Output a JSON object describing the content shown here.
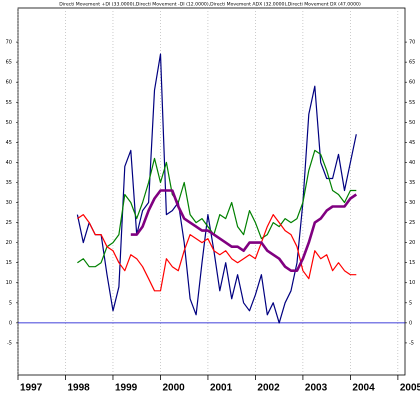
{
  "chart_data": {
    "type": "line",
    "title": "Directi Movement +DI (33.0000),Directi Movement -DI (12.0000),Directi Movement ADX (32.0000),Directi Movement DX (47.0000)",
    "x": [
      1998.25,
      1998.375,
      1998.5,
      1998.625,
      1998.75,
      1998.875,
      1999,
      1999.125,
      1999.25,
      1999.375,
      1999.5,
      1999.625,
      1999.75,
      1999.875,
      2000,
      2000.125,
      2000.25,
      2000.375,
      2000.5,
      2000.625,
      2000.75,
      2000.875,
      2001,
      2001.125,
      2001.25,
      2001.375,
      2001.5,
      2001.625,
      2001.75,
      2001.875,
      2002,
      2002.125,
      2002.25,
      2002.375,
      2002.5,
      2002.625,
      2002.75,
      2002.875,
      2003,
      2003.125,
      2003.25,
      2003.375,
      2003.5,
      2003.625,
      2003.75,
      2003.875,
      2004,
      2004.125
    ],
    "series": [
      {
        "name": "Directi Movement DX",
        "color": "#000080",
        "width": 1.2,
        "values": [
          27,
          20,
          25,
          22,
          22,
          12,
          3,
          9,
          39,
          43,
          22,
          28,
          30,
          58,
          67,
          27,
          28,
          30,
          20,
          6,
          2,
          15,
          27,
          18,
          8,
          15,
          6,
          12,
          5,
          3,
          7,
          12,
          2,
          5,
          0,
          5,
          8,
          15,
          30,
          52,
          59,
          40,
          36,
          36,
          42,
          33,
          40,
          47
        ]
      },
      {
        "name": "Directi Movement +DI",
        "color": "#008000",
        "width": 1.2,
        "values": [
          15,
          16,
          14,
          14,
          15,
          19,
          20,
          22,
          32,
          30,
          26,
          30,
          35,
          41,
          35,
          40,
          32,
          30,
          35,
          27,
          25,
          26,
          24,
          22,
          27,
          26,
          30,
          24,
          22,
          28,
          25,
          21,
          22,
          25,
          24,
          26,
          25,
          26,
          30,
          38,
          43,
          42,
          38,
          33,
          32,
          30,
          33,
          33
        ]
      },
      {
        "name": "Directi Movement -DI",
        "color": "#ff0000",
        "width": 1.2,
        "values": [
          26,
          27,
          25,
          22,
          22,
          19,
          18,
          15,
          13,
          17,
          16,
          14,
          11,
          8,
          8,
          16,
          14,
          13,
          18,
          22,
          21,
          20,
          21,
          18,
          17,
          18,
          16,
          15,
          16,
          17,
          16,
          20,
          24,
          27,
          25,
          23,
          22,
          19,
          13,
          11,
          18,
          16,
          17,
          13,
          15,
          13,
          12,
          12
        ]
      },
      {
        "name": "Directi Movement ADX",
        "color": "#800080",
        "width": 2.6,
        "values": [
          null,
          null,
          null,
          null,
          null,
          null,
          null,
          null,
          null,
          22,
          22,
          24,
          28,
          31,
          33,
          33,
          33,
          29,
          26,
          25,
          24,
          23,
          23,
          22,
          21,
          20,
          19,
          19,
          18,
          20,
          20,
          20,
          18,
          17,
          16,
          14,
          13,
          13,
          16,
          20,
          25,
          26,
          28,
          29,
          29,
          29,
          31,
          32
        ]
      }
    ],
    "xlim": [
      1997,
      2005.15
    ],
    "xticks": [
      1997,
      1998,
      1999,
      2000,
      2001,
      2002,
      2003,
      2004,
      2005
    ],
    "ylim": [
      -13,
      78.5
    ],
    "yticks": [
      -5,
      0,
      5,
      10,
      15,
      20,
      25,
      30,
      35,
      40,
      45,
      50,
      55,
      60,
      65,
      70
    ],
    "zero_line_color": "#0000cc",
    "grid": true
  }
}
